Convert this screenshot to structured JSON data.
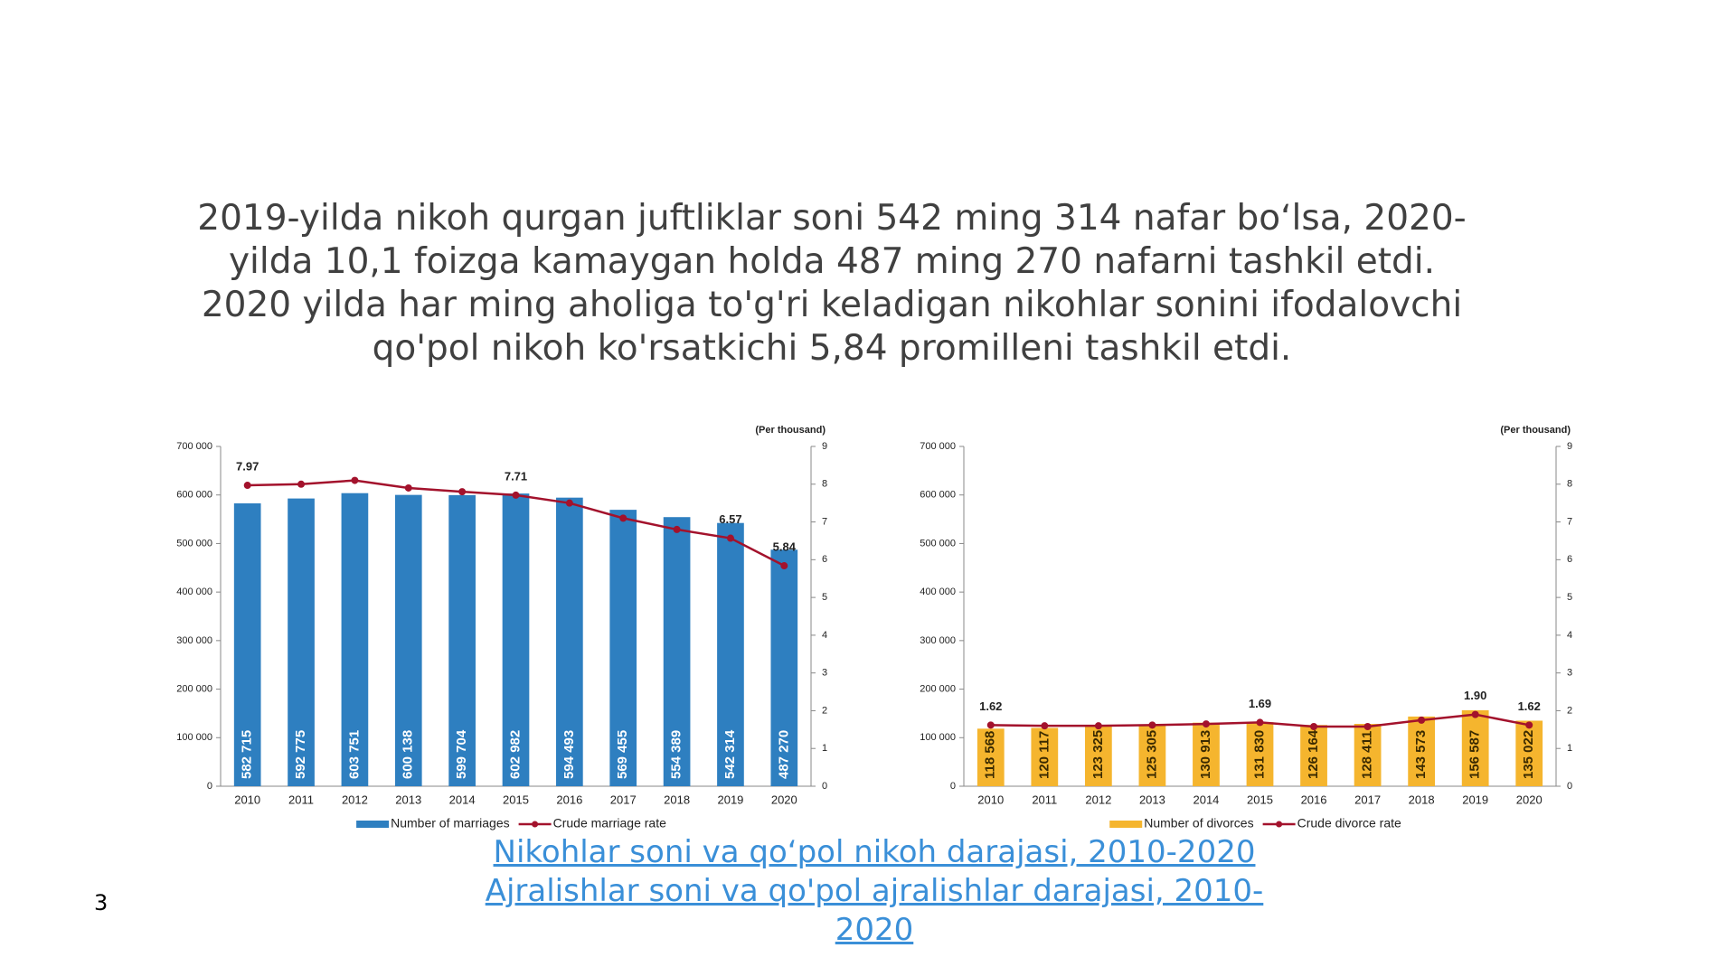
{
  "text": "2019-yilda nikoh qurgan juftliklar soni 542 ming 314 nafar bo‘lsa, 2020-yilda 10,1 foizga kamaygan holda 487 ming 270 nafarni tashkil etdi. 2020 yilda har ming aholiga to'g'ri keladigan nikohlar sonini ifodalovchi qo'pol nikoh ko'rsatkichi 5,84 promilleni tashkil etdi.",
  "links": [
    "Nikohlar soni va qo‘pol nikoh darajasi, 2010-2020",
    "Ajralishlar soni va qo'pol ajralishlar darajasi, 2010-2020"
  ],
  "page_number": "3",
  "chart_data": [
    {
      "type": "bar",
      "categories": [
        "2010",
        "2011",
        "2012",
        "2013",
        "2014",
        "2015",
        "2016",
        "2017",
        "2018",
        "2019",
        "2020"
      ],
      "ylim": [
        0,
        700000
      ],
      "yticks": [
        0,
        {
          "value": 100000,
          "label": "100 000"
        },
        {
          "value": 200000,
          "label": "200 000"
        },
        {
          "value": 300000,
          "label": "300 000"
        },
        {
          "value": 400000,
          "label": "400 000"
        },
        {
          "value": 500000,
          "label": "500 000"
        },
        {
          "value": 600000,
          "label": "600 000"
        },
        {
          "value": 700000,
          "label": "700 000"
        }
      ],
      "y2lim": [
        0,
        9
      ],
      "y2ticks": [
        0,
        1,
        2,
        3,
        4,
        5,
        6,
        7,
        8,
        9
      ],
      "y2_label": "(Per thousand)",
      "series": [
        {
          "name": "Number of marriages",
          "color": "#2e7fc0",
          "values": [
            582715,
            592775,
            603751,
            600138,
            599704,
            602982,
            594493,
            569455,
            554389,
            542314,
            487270
          ],
          "value_labels": [
            "582 715",
            "592 775",
            "603 751",
            "600 138",
            "599 704",
            "602 982",
            "594 493",
            "569 455",
            "554 389",
            "542 314",
            "487 270"
          ]
        },
        {
          "name": "Crude marriage rate",
          "color": "#a3122c",
          "type": "line",
          "axis": "y2",
          "values": [
            7.97,
            8.0,
            8.1,
            7.9,
            7.8,
            7.71,
            7.5,
            7.1,
            6.8,
            6.57,
            5.84
          ],
          "value_labels": [
            "7.97",
            null,
            null,
            null,
            null,
            "7.71",
            null,
            null,
            null,
            "6.57",
            "5.84"
          ]
        }
      ]
    },
    {
      "type": "bar",
      "categories": [
        "2010",
        "2011",
        "2012",
        "2013",
        "2014",
        "2015",
        "2016",
        "2017",
        "2018",
        "2019",
        "2020"
      ],
      "ylim": [
        0,
        700000
      ],
      "yticks": [
        0,
        {
          "value": 100000,
          "label": "100 000"
        },
        {
          "value": 200000,
          "label": "200 000"
        },
        {
          "value": 300000,
          "label": "300 000"
        },
        {
          "value": 400000,
          "label": "400 000"
        },
        {
          "value": 500000,
          "label": "500 000"
        },
        {
          "value": 600000,
          "label": "600 000"
        },
        {
          "value": 700000,
          "label": "700 000"
        }
      ],
      "y2lim": [
        0,
        9
      ],
      "y2ticks": [
        0,
        1,
        2,
        3,
        4,
        5,
        6,
        7,
        8,
        9
      ],
      "y2_label": "(Per thousand)",
      "series": [
        {
          "name": "Number of divorces",
          "color": "#f5b52e",
          "values": [
            118568,
            120117,
            123325,
            125305,
            130913,
            131830,
            126164,
            128411,
            143573,
            156587,
            135022
          ],
          "value_labels": [
            "118 568",
            "120 117",
            "123 325",
            "125 305",
            "130 913",
            "131 830",
            "126 164",
            "128 411",
            "143 573",
            "156 587",
            "135 022"
          ]
        },
        {
          "name": "Crude divorce rate",
          "color": "#a3122c",
          "type": "line",
          "axis": "y2",
          "values": [
            1.62,
            1.6,
            1.6,
            1.62,
            1.65,
            1.69,
            1.58,
            1.58,
            1.75,
            1.9,
            1.62
          ],
          "value_labels": [
            "1.62",
            null,
            null,
            null,
            null,
            "1.69",
            null,
            null,
            null,
            "1.90",
            "1.62"
          ]
        }
      ]
    }
  ]
}
